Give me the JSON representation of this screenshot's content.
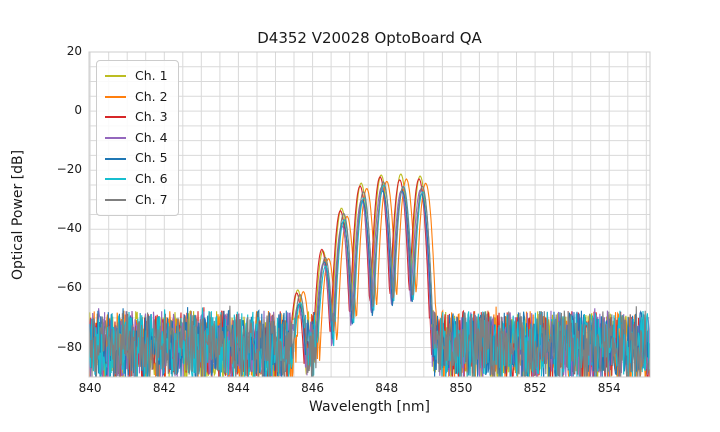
{
  "figure": {
    "background": "#ffffff"
  },
  "chart_data": {
    "type": "line",
    "title": "D4352 V20028 OptoBoard QA",
    "xlabel": "Wavelength [nm]",
    "ylabel": "Optical Power [dB]",
    "xlim": [
      839.97,
      855.1
    ],
    "ylim": [
      -90,
      20
    ],
    "xticks": [
      840,
      842,
      844,
      846,
      848,
      850,
      852,
      854
    ],
    "yticks": [
      20,
      0,
      -20,
      -40,
      -60,
      -80
    ],
    "ytick_labels": [
      "20",
      "0",
      "−20",
      "−40",
      "−60",
      "−80"
    ],
    "grid": {
      "on": true,
      "x_step_nm": 0.5,
      "y_step_db": 5,
      "color": "#d9d9d9"
    },
    "frame_color": "#cccccc",
    "text_color": "#1a1a1a",
    "legend": {
      "position": "upper-left",
      "border_color": "#cccccc",
      "background": "rgba(255,255,255,0.85)"
    },
    "series": [
      {
        "name": "Ch. 1",
        "color": "#bcbd22",
        "power_offset_db": 1.5,
        "lambda_shift_nm": -0.02
      },
      {
        "name": "Ch. 2",
        "color": "#ff7f0e",
        "power_offset_db": 0.0,
        "lambda_shift_nm": 0.13
      },
      {
        "name": "Ch. 3",
        "color": "#d62728",
        "power_offset_db": 1.0,
        "lambda_shift_nm": -0.05
      },
      {
        "name": "Ch. 4",
        "color": "#9467bd",
        "power_offset_db": -3.5,
        "lambda_shift_nm": -0.01
      },
      {
        "name": "Ch. 5",
        "color": "#1f77b4",
        "power_offset_db": -3.0,
        "lambda_shift_nm": 0.02
      },
      {
        "name": "Ch. 6",
        "color": "#17becf",
        "power_offset_db": -3.2,
        "lambda_shift_nm": 0.05
      },
      {
        "name": "Ch. 7",
        "color": "#7f7f7f",
        "power_offset_db": -1.2,
        "lambda_shift_nm": 0.04
      }
    ],
    "modes": {
      "centers_nm": [
        845.62,
        846.3,
        846.8,
        847.33,
        847.87,
        848.4,
        848.92
      ],
      "envelope_peak_db": [
        -62,
        -49,
        -34.5,
        -27,
        -23,
        -23.5,
        -24
      ],
      "sigma_nm": 0.085
    },
    "noise_floor_db": {
      "typical_top": -68,
      "clip_bottom": -90
    },
    "sample_step_nm": 0.02
  }
}
